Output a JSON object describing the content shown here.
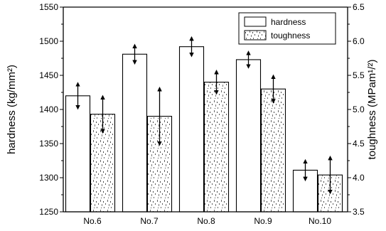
{
  "chart_data": {
    "type": "bar",
    "categories": [
      "No.6",
      "No.7",
      "No.8",
      "No.9",
      "No.10"
    ],
    "series": [
      {
        "name": "hardness",
        "axis": "left",
        "fill": "none",
        "values": [
          1420,
          1481,
          1492,
          1473,
          1311
        ],
        "errors": [
          17,
          12,
          12,
          10,
          13
        ]
      },
      {
        "name": "toughness",
        "axis": "right",
        "fill": "speckled",
        "values": [
          4.93,
          4.9,
          5.4,
          5.3,
          4.04
        ],
        "errors": [
          0.25,
          0.4,
          0.15,
          0.18,
          0.25
        ]
      }
    ],
    "ylabel": "hardness (kg/mm²)",
    "ylabel_right": "toughness (MPam¹/²)",
    "ylim": [
      1250,
      1550
    ],
    "ylim_right": [
      3.5,
      6.5
    ],
    "yticks": [
      "1250",
      "1300",
      "1350",
      "1400",
      "1450",
      "1500",
      "1550"
    ],
    "yticks_right": [
      "3.5",
      "4.0",
      "4.5",
      "5.0",
      "5.5",
      "6.0",
      "6.5"
    ],
    "legend_position": "top-right",
    "grid": false,
    "colors": {
      "axis": "#000000",
      "bar_edge": "#000000",
      "bar_fill": "#ffffff",
      "speckle": "#555555"
    }
  }
}
